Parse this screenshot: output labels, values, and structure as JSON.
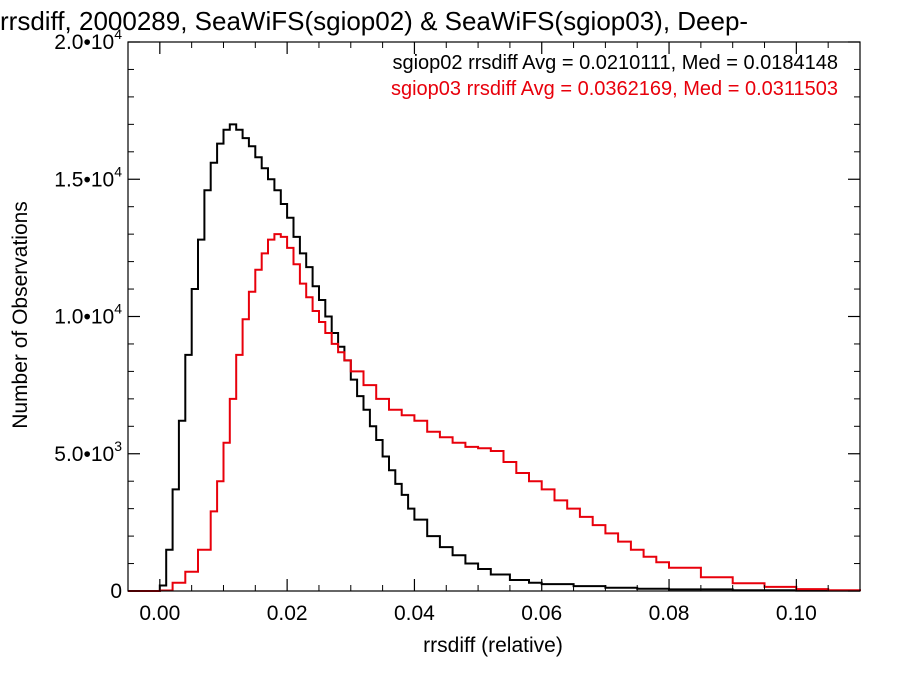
{
  "chart_data": {
    "type": "line",
    "title": "rrsdiff, 2000289, SeaWiFS(sgiop02) & SeaWiFS(sgiop03), Deep-",
    "xlabel": "rrsdiff (relative)",
    "ylabel": "Number of Observations",
    "xlim": [
      -0.005,
      0.11
    ],
    "ylim": [
      0,
      20000
    ],
    "x_ticks": [
      0.0,
      0.02,
      0.04,
      0.06,
      0.08,
      0.1
    ],
    "x_tick_labels": [
      "0.00",
      "0.02",
      "0.04",
      "0.06",
      "0.08",
      "0.10"
    ],
    "y_ticks": [
      {
        "value": 0,
        "mantissa": "0",
        "exponent": ""
      },
      {
        "value": 5000,
        "mantissa": "5.0•10",
        "exponent": "3"
      },
      {
        "value": 10000,
        "mantissa": "1.0•10",
        "exponent": "4"
      },
      {
        "value": 15000,
        "mantissa": "1.5•10",
        "exponent": "4"
      },
      {
        "value": 20000,
        "mantissa": "2.0•10",
        "exponent": "4"
      }
    ],
    "grid": false,
    "legend_position": "top-right",
    "legend": [
      "sgiop02 rrsdiff Avg = 0.0210111, Med = 0.0184148",
      "sgiop03 rrsdiff Avg = 0.0362169, Med = 0.0311503"
    ],
    "series": [
      {
        "color": "#000000",
        "x": [
          -0.005,
          -0.0005,
          0.0,
          0.001,
          0.002,
          0.003,
          0.004,
          0.005,
          0.006,
          0.007,
          0.008,
          0.009,
          0.01,
          0.011,
          0.012,
          0.013,
          0.014,
          0.015,
          0.016,
          0.017,
          0.018,
          0.019,
          0.02,
          0.021,
          0.022,
          0.023,
          0.024,
          0.025,
          0.026,
          0.027,
          0.028,
          0.029,
          0.03,
          0.031,
          0.032,
          0.033,
          0.034,
          0.035,
          0.036,
          0.037,
          0.038,
          0.039,
          0.04,
          0.042,
          0.044,
          0.046,
          0.048,
          0.05,
          0.052,
          0.055,
          0.058,
          0.06,
          0.065,
          0.07,
          0.075,
          0.08,
          0.09,
          0.1,
          0.11
        ],
        "y": [
          0,
          0,
          200,
          1500,
          3700,
          6200,
          8600,
          11000,
          12800,
          14600,
          15600,
          16300,
          16800,
          17000,
          16800,
          16500,
          16200,
          15800,
          15400,
          15000,
          14600,
          14100,
          13600,
          12900,
          12300,
          11800,
          11100,
          10600,
          10000,
          9400,
          8900,
          8400,
          7700,
          7100,
          6600,
          6000,
          5500,
          4900,
          4400,
          3900,
          3500,
          3000,
          2600,
          2000,
          1600,
          1300,
          1000,
          800,
          600,
          400,
          300,
          250,
          180,
          120,
          80,
          60,
          30,
          15,
          0
        ]
      },
      {
        "color": "#e8000b",
        "x": [
          -0.005,
          0.0,
          0.002,
          0.004,
          0.006,
          0.008,
          0.009,
          0.01,
          0.011,
          0.012,
          0.013,
          0.014,
          0.015,
          0.016,
          0.017,
          0.018,
          0.019,
          0.02,
          0.021,
          0.022,
          0.023,
          0.024,
          0.025,
          0.026,
          0.027,
          0.028,
          0.029,
          0.03,
          0.032,
          0.034,
          0.036,
          0.038,
          0.04,
          0.042,
          0.044,
          0.046,
          0.048,
          0.05,
          0.052,
          0.054,
          0.056,
          0.058,
          0.06,
          0.062,
          0.064,
          0.066,
          0.068,
          0.07,
          0.072,
          0.074,
          0.076,
          0.078,
          0.08,
          0.085,
          0.09,
          0.095,
          0.1,
          0.105,
          0.11
        ],
        "y": [
          0,
          20,
          300,
          700,
          1500,
          2900,
          4000,
          5400,
          7000,
          8600,
          9900,
          10900,
          11700,
          12300,
          12800,
          13000,
          12900,
          12500,
          11900,
          11200,
          10700,
          10200,
          9800,
          9400,
          9000,
          8700,
          8400,
          8000,
          7500,
          7000,
          6600,
          6400,
          6200,
          5800,
          5600,
          5400,
          5250,
          5200,
          5100,
          4700,
          4300,
          4000,
          3700,
          3300,
          3000,
          2700,
          2400,
          2100,
          1800,
          1500,
          1250,
          1050,
          850,
          500,
          280,
          150,
          70,
          30,
          0
        ]
      }
    ]
  }
}
